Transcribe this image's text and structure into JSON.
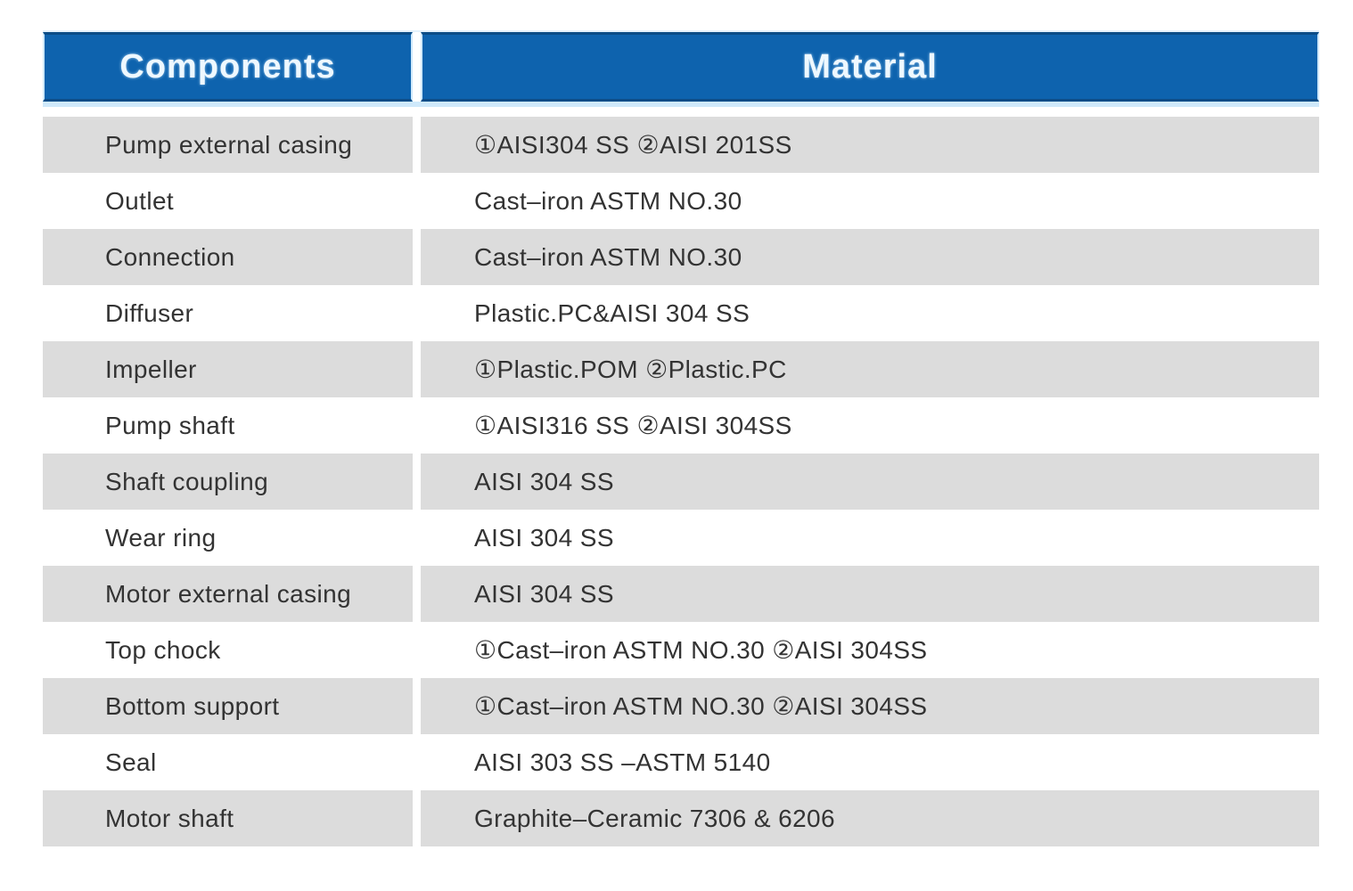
{
  "table": {
    "headers": {
      "components": "Components",
      "material": "Material"
    },
    "rows": [
      {
        "component": "Pump external casing",
        "material": "①AISI304 SS ②AISI 201SS"
      },
      {
        "component": "Outlet",
        "material": "Cast–iron ASTM NO.30"
      },
      {
        "component": "Connection",
        "material": "Cast–iron ASTM NO.30"
      },
      {
        "component": "Diffuser",
        "material": "Plastic.PC&AISI 304 SS"
      },
      {
        "component": "Impeller",
        "material": "①Plastic.POM ②Plastic.PC"
      },
      {
        "component": "Pump shaft",
        "material": "①AISI316 SS ②AISI 304SS"
      },
      {
        "component": "Shaft coupling",
        "material": "AISI 304 SS"
      },
      {
        "component": "Wear ring",
        "material": "AISI 304 SS"
      },
      {
        "component": "Motor external casing",
        "material": "AISI 304 SS"
      },
      {
        "component": "Top chock",
        "material": "①Cast–iron ASTM NO.30 ②AISI 304SS"
      },
      {
        "component": "Bottom support",
        "material": "①Cast–iron ASTM NO.30 ②AISI 304SS"
      },
      {
        "component": "Seal",
        "material": "AISI 303 SS –ASTM 5140"
      },
      {
        "component": "Motor shaft",
        "material": "Graphite–Ceramic 7306 & 6206"
      }
    ],
    "colors": {
      "header_bg": "#0e63ae",
      "header_text": "#eef8ff",
      "header_top_edge": "#0b4c87",
      "header_halo": "#cfe9fb",
      "row_alt_bg": "#dcdcdc",
      "row_bg": "#ffffff",
      "text": "#333333"
    }
  }
}
